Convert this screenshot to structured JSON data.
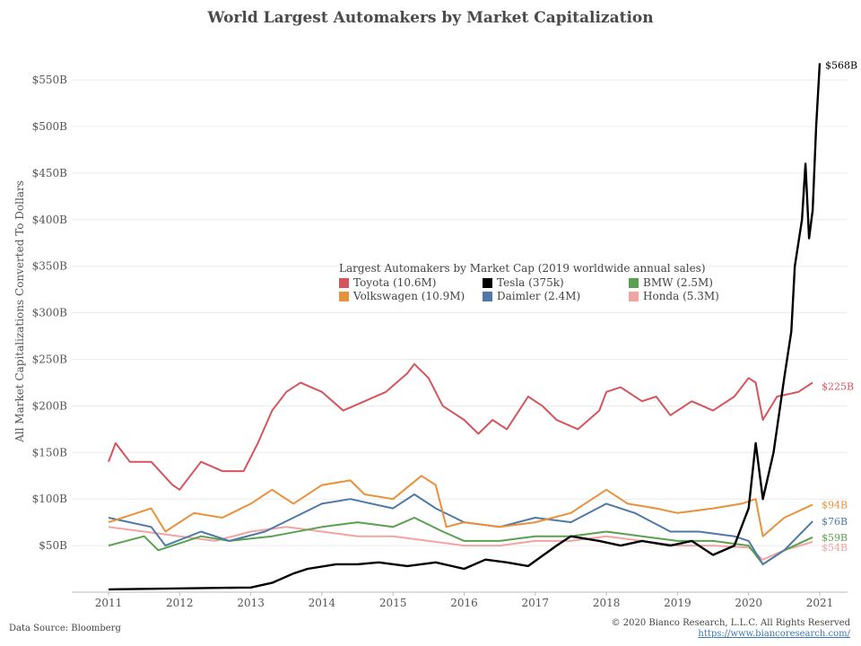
{
  "chart_data": {
    "type": "line",
    "title": "World Largest Automakers by Market Capitalization",
    "ylabel": "All Market Capitalizations Converted To Dollars",
    "xlabel": "",
    "ylim": [
      0,
      575
    ],
    "xlim": [
      2010.7,
      2021.2
    ],
    "yticks": [
      50,
      100,
      150,
      200,
      250,
      300,
      350,
      400,
      450,
      500,
      550
    ],
    "ytick_labels": [
      "$50B",
      "$100B",
      "$150B",
      "$200B",
      "$250B",
      "$300B",
      "$350B",
      "$400B",
      "$450B",
      "$500B",
      "$550B"
    ],
    "xticks": [
      2011,
      2012,
      2013,
      2014,
      2015,
      2016,
      2017,
      2018,
      2019,
      2020,
      2021
    ],
    "xtick_labels": [
      "2011",
      "2012",
      "2013",
      "2014",
      "2015",
      "2016",
      "2017",
      "2018",
      "2019",
      "2020",
      "2021"
    ],
    "grid": "horizontal",
    "legend_title": "Largest Automakers by Market Cap (2019 worldwide annual sales)",
    "legend_placement": "center",
    "series": [
      {
        "name": "Toyota (10.6M)",
        "color": "#d6545c",
        "end_label": "$225B",
        "x": [
          2011,
          2011.1,
          2011.3,
          2011.6,
          2011.9,
          2012.0,
          2012.3,
          2012.6,
          2012.9,
          2013.1,
          2013.3,
          2013.5,
          2013.7,
          2014.0,
          2014.3,
          2014.6,
          2014.9,
          2015.2,
          2015.3,
          2015.5,
          2015.7,
          2016.0,
          2016.2,
          2016.4,
          2016.6,
          2016.9,
          2017.1,
          2017.3,
          2017.6,
          2017.9,
          2018.0,
          2018.2,
          2018.5,
          2018.7,
          2018.9,
          2019.2,
          2019.5,
          2019.8,
          2020.0,
          2020.1,
          2020.2,
          2020.4,
          2020.7,
          2020.9
        ],
        "y": [
          140,
          160,
          140,
          140,
          115,
          110,
          140,
          130,
          130,
          160,
          195,
          215,
          225,
          215,
          195,
          205,
          215,
          235,
          245,
          230,
          200,
          185,
          170,
          185,
          175,
          210,
          200,
          185,
          175,
          195,
          215,
          220,
          205,
          210,
          190,
          205,
          195,
          210,
          230,
          225,
          185,
          210,
          215,
          225
        ]
      },
      {
        "name": "Tesla (375k)",
        "color": "#000000",
        "end_label": "$568B",
        "x": [
          2011,
          2012,
          2013,
          2013.3,
          2013.6,
          2013.8,
          2014.2,
          2014.5,
          2014.8,
          2015.2,
          2015.6,
          2016,
          2016.3,
          2016.6,
          2016.9,
          2017.3,
          2017.5,
          2017.9,
          2018.2,
          2018.5,
          2018.9,
          2019.2,
          2019.5,
          2019.8,
          2020.0,
          2020.1,
          2020.2,
          2020.35,
          2020.5,
          2020.6,
          2020.65,
          2020.75,
          2020.8,
          2020.85,
          2020.9,
          2020.95,
          2021
        ],
        "y": [
          3,
          4,
          5,
          10,
          20,
          25,
          30,
          30,
          32,
          28,
          32,
          25,
          35,
          32,
          28,
          50,
          60,
          55,
          50,
          55,
          50,
          55,
          40,
          50,
          90,
          160,
          100,
          150,
          230,
          280,
          350,
          400,
          460,
          380,
          410,
          500,
          568
        ]
      },
      {
        "name": "BMW (2.5M)",
        "color": "#59a14f",
        "end_label": "$59B",
        "x": [
          2011,
          2011.5,
          2011.7,
          2012.3,
          2012.7,
          2013.3,
          2014,
          2014.5,
          2015,
          2015.3,
          2015.7,
          2016,
          2016.5,
          2017,
          2017.5,
          2018,
          2018.5,
          2019,
          2019.5,
          2020,
          2020.2,
          2020.5,
          2020.9
        ],
        "y": [
          50,
          60,
          45,
          60,
          55,
          60,
          70,
          75,
          70,
          80,
          65,
          55,
          55,
          60,
          60,
          65,
          60,
          55,
          55,
          50,
          30,
          45,
          59
        ]
      },
      {
        "name": "Volkswagen (10.9M)",
        "color": "#e8913a",
        "end_label": "$94B",
        "x": [
          2011,
          2011.6,
          2011.8,
          2012.2,
          2012.6,
          2013,
          2013.3,
          2013.6,
          2014,
          2014.4,
          2014.6,
          2015.0,
          2015.4,
          2015.6,
          2015.75,
          2016,
          2016.5,
          2017,
          2017.5,
          2018.0,
          2018.3,
          2018.7,
          2019,
          2019.5,
          2019.9,
          2020.1,
          2020.2,
          2020.5,
          2020.9
        ],
        "y": [
          75,
          90,
          65,
          85,
          80,
          95,
          110,
          95,
          115,
          120,
          105,
          100,
          125,
          115,
          70,
          75,
          70,
          75,
          85,
          110,
          95,
          90,
          85,
          90,
          95,
          100,
          60,
          80,
          94
        ]
      },
      {
        "name": "Daimler (2.4M)",
        "color": "#4e79a7",
        "end_label": "$76B",
        "x": [
          2011,
          2011.6,
          2011.8,
          2012.3,
          2012.7,
          2013.2,
          2013.6,
          2014,
          2014.4,
          2015,
          2015.3,
          2015.6,
          2016,
          2016.5,
          2017,
          2017.5,
          2018,
          2018.4,
          2018.9,
          2019.3,
          2019.8,
          2020,
          2020.2,
          2020.5,
          2020.9
        ],
        "y": [
          80,
          70,
          50,
          65,
          55,
          65,
          80,
          95,
          100,
          90,
          105,
          90,
          75,
          70,
          80,
          75,
          95,
          85,
          65,
          65,
          60,
          55,
          30,
          45,
          76
        ]
      },
      {
        "name": "Honda (5.3M)",
        "color": "#f2a3a3",
        "end_label": "$54B",
        "x": [
          2011,
          2011.5,
          2012,
          2012.5,
          2013,
          2013.5,
          2014,
          2014.5,
          2015,
          2015.5,
          2016,
          2016.5,
          2017,
          2017.5,
          2018,
          2018.5,
          2019,
          2019.5,
          2020,
          2020.2,
          2020.5,
          2020.9
        ],
        "y": [
          70,
          65,
          60,
          55,
          65,
          70,
          65,
          60,
          60,
          55,
          50,
          50,
          55,
          55,
          60,
          55,
          50,
          50,
          48,
          35,
          45,
          54
        ]
      }
    ]
  },
  "footer": {
    "source": "Data Source: Bloomberg",
    "copyright": "© 2020 Bianco Research, L.L.C. All Rights Reserved",
    "url": "https://www.biancoresearch.com/"
  }
}
